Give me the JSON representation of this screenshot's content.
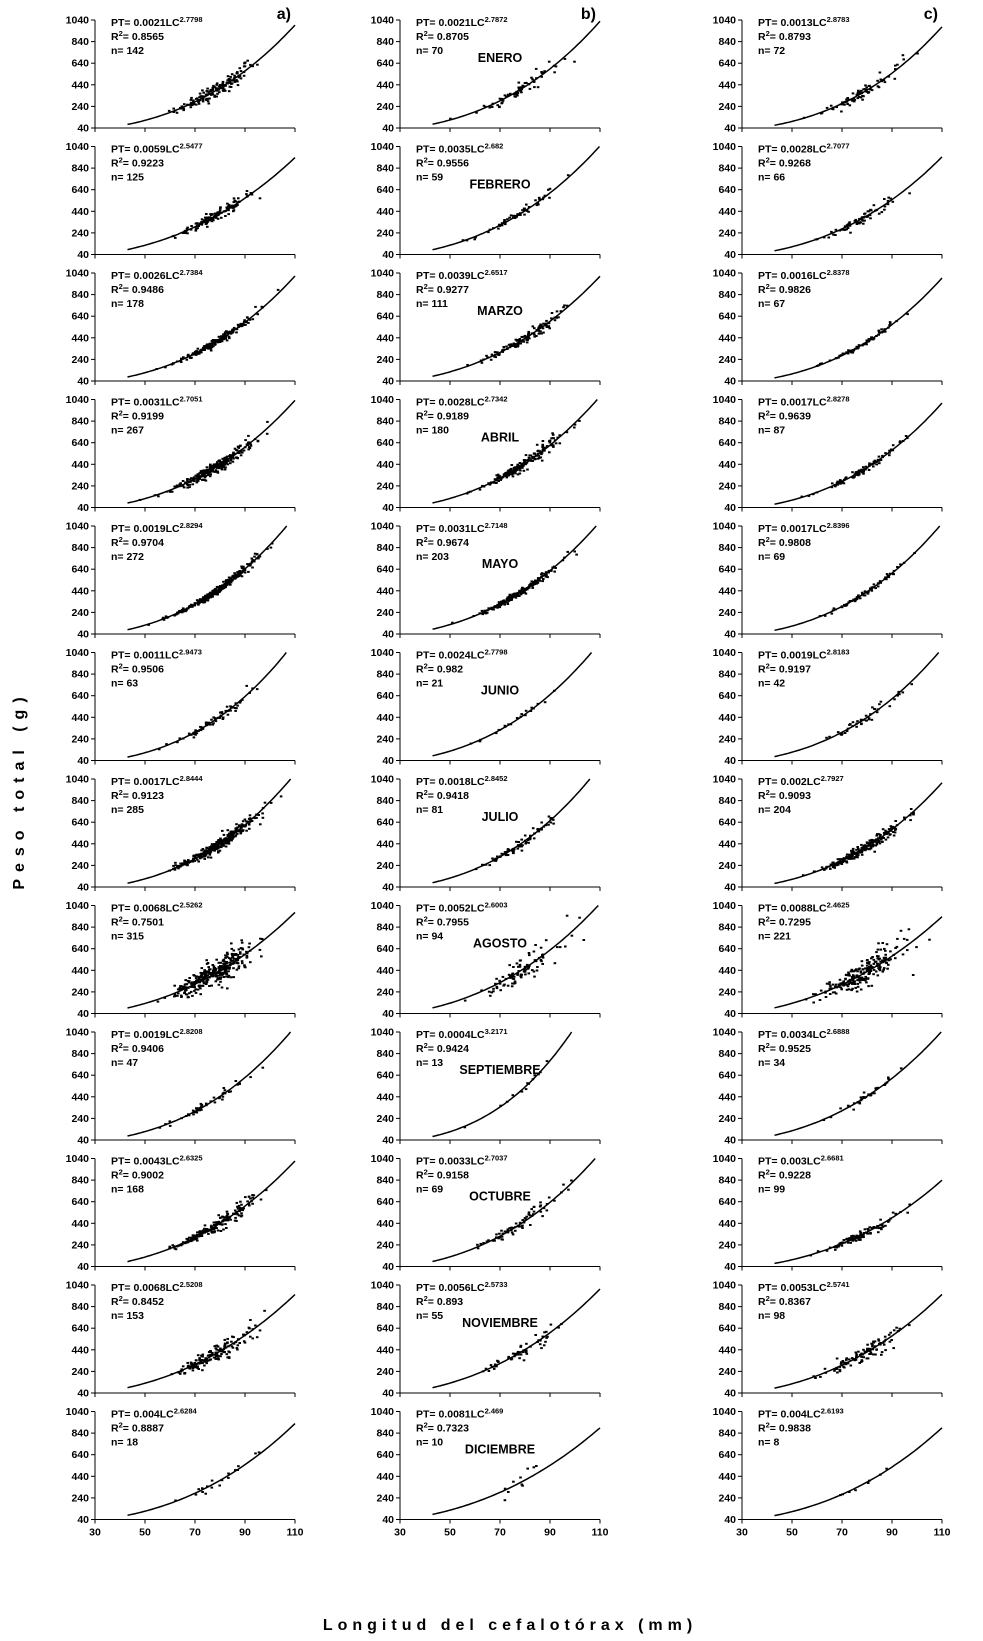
{
  "y_axis_label": "Peso total (g)",
  "x_axis_label": "Longitud del cefalotórax (mm)",
  "columns": [
    "a)",
    "b)",
    "c)"
  ],
  "months": [
    "ENERO",
    "FEBRERO",
    "MARZO",
    "ABRIL",
    "MAYO",
    "JUNIO",
    "JULIO",
    "AGOSTO",
    "SEPTIEMBRE",
    "OCTUBRE",
    "NOVIEMBRE",
    "DICIEMBRE"
  ],
  "chart_data": {
    "type": "scatter",
    "layout": "12 rows (months) x 3 columns (a, b, c)",
    "xlim": [
      30,
      110
    ],
    "ylim": [
      40,
      1040
    ],
    "xticks": [
      "30",
      "50",
      "70",
      "90",
      "110"
    ],
    "yticks": [
      "40",
      "240",
      "440",
      "640",
      "840",
      "1040"
    ],
    "panels": [
      [
        {
          "a": "0.0021",
          "b": "2.7798",
          "r2": "0.8565",
          "n": "142"
        },
        {
          "a": "0.0021",
          "b": "2.7872",
          "r2": "0.8705",
          "n": "70"
        },
        {
          "a": "0.0013",
          "b": "2.8783",
          "r2": "0.8793",
          "n": "72"
        }
      ],
      [
        {
          "a": "0.0059",
          "b": "2.5477",
          "r2": "0.9223",
          "n": "125"
        },
        {
          "a": "0.0035",
          "b": "2.682",
          "r2": "0.9556",
          "n": "59"
        },
        {
          "a": "0.0028",
          "b": "2.7077",
          "r2": "0.9268",
          "n": "66"
        }
      ],
      [
        {
          "a": "0.0026",
          "b": "2.7384",
          "r2": "0.9486",
          "n": "178"
        },
        {
          "a": "0.0039",
          "b": "2.6517",
          "r2": "0.9277",
          "n": "111"
        },
        {
          "a": "0.0016",
          "b": "2.8378",
          "r2": "0.9826",
          "n": "67"
        }
      ],
      [
        {
          "a": "0.0031",
          "b": "2.7051",
          "r2": "0.9199",
          "n": "267"
        },
        {
          "a": "0.0028",
          "b": "2.7342",
          "r2": "0.9189",
          "n": "180"
        },
        {
          "a": "0.0017",
          "b": "2.8278",
          "r2": "0.9639",
          "n": "87"
        }
      ],
      [
        {
          "a": "0.0019",
          "b": "2.8294",
          "r2": "0.9704",
          "n": "272"
        },
        {
          "a": "0.0031",
          "b": "2.7148",
          "r2": "0.9674",
          "n": "203"
        },
        {
          "a": "0.0017",
          "b": "2.8396",
          "r2": "0.9808",
          "n": "69"
        }
      ],
      [
        {
          "a": "0.0011",
          "b": "2.9473",
          "r2": "0.9506",
          "n": "63"
        },
        {
          "a": "0.0024",
          "b": "2.7798",
          "r2": "0.982",
          "n": "21"
        },
        {
          "a": "0.0019",
          "b": "2.8183",
          "r2": "0.9197",
          "n": "42"
        }
      ],
      [
        {
          "a": "0.0017",
          "b": "2.8444",
          "r2": "0.9123",
          "n": "285"
        },
        {
          "a": "0.0018",
          "b": "2.8452",
          "r2": "0.9418",
          "n": "81"
        },
        {
          "a": "0.002",
          "b": "2.7927",
          "r2": "0.9093",
          "n": "204"
        }
      ],
      [
        {
          "a": "0.0068",
          "b": "2.5262",
          "r2": "0.7501",
          "n": "315"
        },
        {
          "a": "0.0052",
          "b": "2.6003",
          "r2": "0.7955",
          "n": "94"
        },
        {
          "a": "0.0088",
          "b": "2.4625",
          "r2": "0.7295",
          "n": "221"
        }
      ],
      [
        {
          "a": "0.0019",
          "b": "2.8208",
          "r2": "0.9406",
          "n": "47"
        },
        {
          "a": "0.0004",
          "b": "3.2171",
          "r2": "0.9424",
          "n": "13"
        },
        {
          "a": "0.0034",
          "b": "2.6888",
          "r2": "0.9525",
          "n": "34"
        }
      ],
      [
        {
          "a": "0.0043",
          "b": "2.6325",
          "r2": "0.9002",
          "n": "168"
        },
        {
          "a": "0.0033",
          "b": "2.7037",
          "r2": "0.9158",
          "n": "69"
        },
        {
          "a": "0.003",
          "b": "2.6681",
          "r2": "0.9228",
          "n": "99"
        }
      ],
      [
        {
          "a": "0.0068",
          "b": "2.5208",
          "r2": "0.8452",
          "n": "153"
        },
        {
          "a": "0.0056",
          "b": "2.5733",
          "r2": "0.893",
          "n": "55"
        },
        {
          "a": "0.0053",
          "b": "2.5741",
          "r2": "0.8367",
          "n": "98"
        }
      ],
      [
        {
          "a": "0.004",
          "b": "2.6284",
          "r2": "0.8887",
          "n": "18"
        },
        {
          "a": "0.0081",
          "b": "2.469",
          "r2": "0.7323",
          "n": "10"
        },
        {
          "a": "0.004",
          "b": "2.6193",
          "r2": "0.9838",
          "n": "8"
        }
      ]
    ]
  }
}
